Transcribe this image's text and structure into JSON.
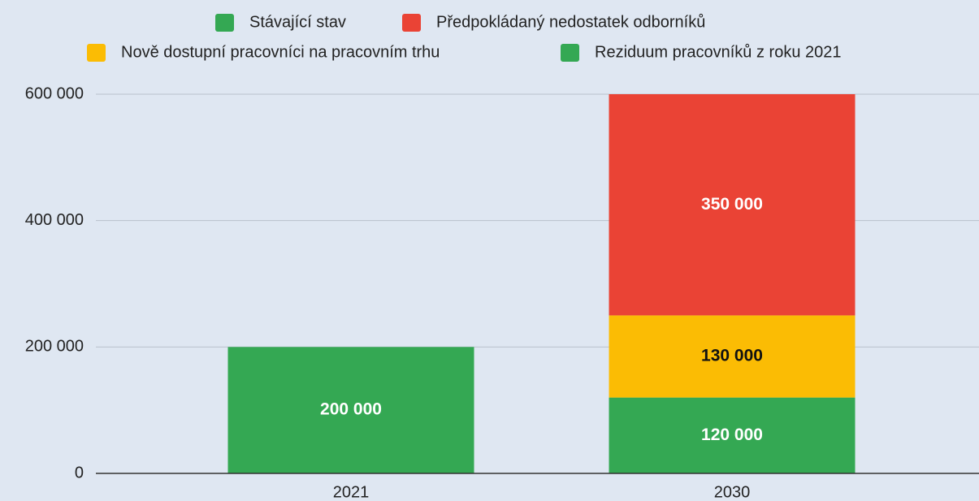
{
  "chart_data": {
    "type": "stacked_bar",
    "categories": [
      "2021",
      "2030"
    ],
    "series": [
      {
        "name": "Stávající stav",
        "color": "#34a853",
        "values": [
          200000,
          null
        ],
        "value_labels": [
          "200 000",
          null
        ]
      },
      {
        "name": "Předpokládaný nedostatek odborníků",
        "color": "#ea4335",
        "values": [
          null,
          350000
        ],
        "value_labels": [
          null,
          "350 000"
        ]
      },
      {
        "name": "Nově dostupní pracovníci na pracovním trhu",
        "color": "#fbbc04",
        "values": [
          null,
          130000
        ],
        "value_labels": [
          null,
          "130 000"
        ]
      },
      {
        "name": "Reziduum pracovníků z roku 2021",
        "color": "#34a853",
        "values": [
          null,
          120000
        ],
        "value_labels": [
          null,
          "120 000"
        ]
      }
    ],
    "ylim": [
      0,
      600000
    ],
    "yticks": [
      0,
      {
        "value": 200000,
        "label": "200 000"
      },
      {
        "value": 400000,
        "label": "400 000"
      },
      {
        "value": 600000,
        "label": "600 000"
      }
    ],
    "grid": true,
    "legend": "top"
  }
}
